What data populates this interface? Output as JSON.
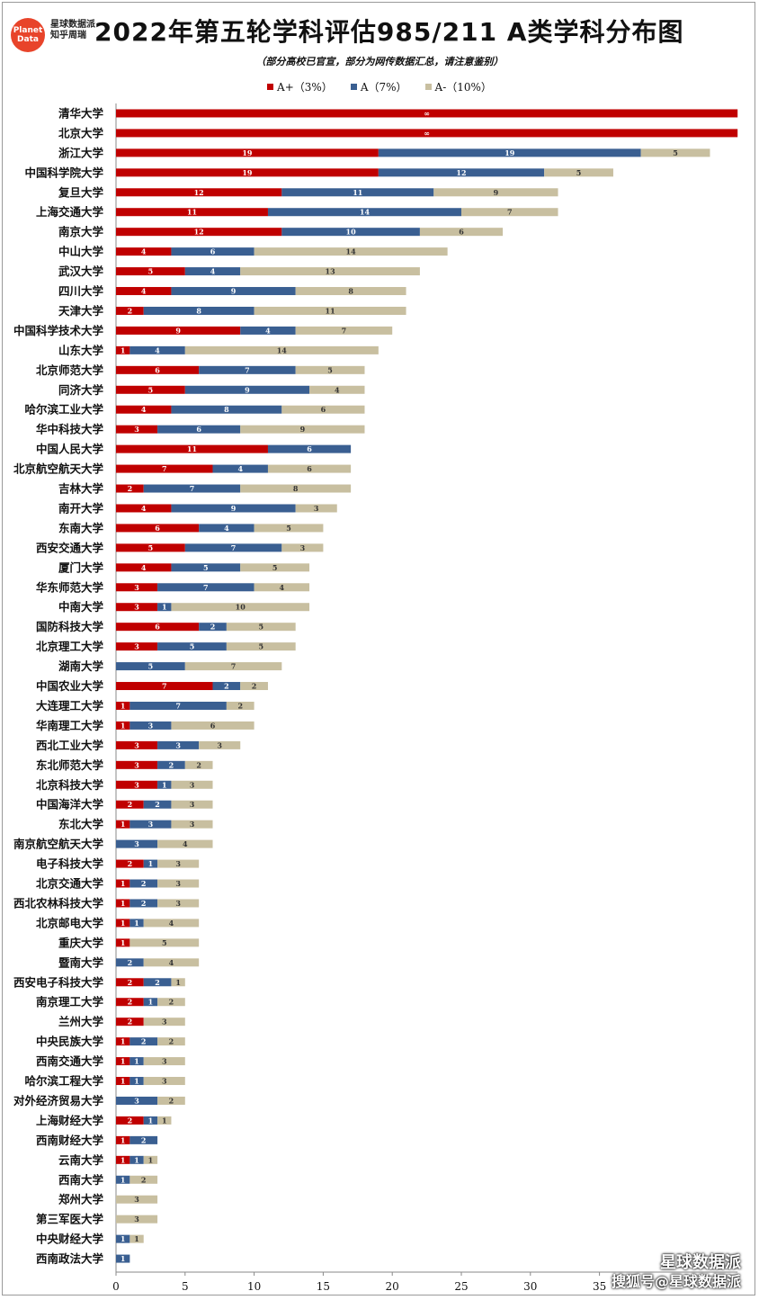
{
  "logo": {
    "line1": "Planet",
    "line2": "Data",
    "sub1": "星球数据派",
    "sub2": "知乎周瑞"
  },
  "title": "2022年第五轮学科评估985/211 A类学科分布图",
  "subtitle": "（部分高校已官宣，部分为网传数据汇总，请注意鉴别）",
  "legend": [
    {
      "label": "A+（3%）",
      "color": "#c00000"
    },
    {
      "label": "A（7%）",
      "color": "#3a5f91"
    },
    {
      "label": "A-（10%）",
      "color": "#c8bfa0"
    }
  ],
  "watermark": {
    "line1": "星球数据派",
    "line2": "搜狐号@星球数据派"
  },
  "chart_data": {
    "type": "bar",
    "orientation": "horizontal",
    "stacked": true,
    "xlim": [
      0,
      45
    ],
    "xticks": [
      0,
      5,
      10,
      15,
      20,
      25,
      30,
      35
    ],
    "categories": [
      "清华大学",
      "北京大学",
      "浙江大学",
      "中国科学院大学",
      "复旦大学",
      "上海交通大学",
      "南京大学",
      "中山大学",
      "武汉大学",
      "四川大学",
      "天津大学",
      "中国科学技术大学",
      "山东大学",
      "北京师范大学",
      "同济大学",
      "哈尔滨工业大学",
      "华中科技大学",
      "中国人民大学",
      "北京航空航天大学",
      "吉林大学",
      "南开大学",
      "东南大学",
      "西安交通大学",
      "厦门大学",
      "华东师范大学",
      "中南大学",
      "国防科技大学",
      "北京理工大学",
      "湖南大学",
      "中国农业大学",
      "大连理工大学",
      "华南理工大学",
      "西北工业大学",
      "东北师范大学",
      "北京科技大学",
      "中国海洋大学",
      "东北大学",
      "南京航空航天大学",
      "电子科技大学",
      "北京交通大学",
      "西北农林科技大学",
      "北京邮电大学",
      "重庆大学",
      "暨南大学",
      "西安电子科技大学",
      "南京理工大学",
      "兰州大学",
      "中央民族大学",
      "西南交通大学",
      "哈尔滨工程大学",
      "对外经济贸易大学",
      "上海财经大学",
      "西南财经大学",
      "云南大学",
      "西南大学",
      "郑州大学",
      "第三军医大学",
      "中央财经大学",
      "西南政法大学"
    ],
    "series": [
      {
        "name": "A+（3%）",
        "color": "#c00000",
        "labels": [
          "∞",
          "∞",
          "19",
          "19",
          "12",
          "11",
          "12",
          "4",
          "5",
          "4",
          "2",
          "9",
          "1",
          "6",
          "5",
          "4",
          "3",
          "11",
          "7",
          "2",
          "4",
          "6",
          "5",
          "4",
          "3",
          "3",
          "6",
          "3",
          "0",
          "7",
          "1",
          "1",
          "3",
          "3",
          "3",
          "2",
          "1",
          "0",
          "2",
          "1",
          "1",
          "1",
          "1",
          "0",
          "2",
          "2",
          "2",
          "1",
          "1",
          "1",
          "0",
          "2",
          "1",
          "1",
          "0",
          "",
          "",
          "0",
          "0"
        ],
        "values": [
          45,
          45,
          19,
          19,
          12,
          11,
          12,
          4,
          5,
          4,
          2,
          9,
          1,
          6,
          5,
          4,
          3,
          11,
          7,
          2,
          4,
          6,
          5,
          4,
          3,
          3,
          6,
          3,
          0,
          7,
          1,
          1,
          3,
          3,
          3,
          2,
          1,
          0,
          2,
          1,
          1,
          1,
          1,
          0,
          2,
          2,
          2,
          1,
          1,
          1,
          0,
          2,
          1,
          1,
          0,
          0,
          0,
          0,
          0
        ]
      },
      {
        "name": "A（7%）",
        "color": "#3a5f91",
        "labels": [
          "",
          "",
          "19",
          "12",
          "11",
          "14",
          "10",
          "6",
          "4",
          "9",
          "8",
          "4",
          "4",
          "7",
          "9",
          "8",
          "6",
          "6",
          "4",
          "7",
          "9",
          "4",
          "7",
          "5",
          "7",
          "1",
          "2",
          "5",
          "5",
          "2",
          "7",
          "3",
          "3",
          "2",
          "1",
          "2",
          "3",
          "3",
          "1",
          "2",
          "2",
          "1",
          "0",
          "2",
          "2",
          "1",
          "0",
          "2",
          "1",
          "1",
          "3",
          "1",
          "2",
          "1",
          "1",
          "",
          "",
          "1",
          "1"
        ],
        "values": [
          0,
          0,
          19,
          12,
          11,
          14,
          10,
          6,
          4,
          9,
          8,
          4,
          4,
          7,
          9,
          8,
          6,
          6,
          4,
          7,
          9,
          4,
          7,
          5,
          7,
          1,
          2,
          5,
          5,
          2,
          7,
          3,
          3,
          2,
          1,
          2,
          3,
          3,
          1,
          2,
          2,
          1,
          0,
          2,
          2,
          1,
          0,
          2,
          1,
          1,
          3,
          1,
          2,
          1,
          1,
          0,
          0,
          1,
          1
        ]
      },
      {
        "name": "A-（10%）",
        "color": "#c8bfa0",
        "labels": [
          "",
          "",
          "5",
          "5",
          "9",
          "7",
          "6",
          "14",
          "13",
          "8",
          "11",
          "7",
          "14",
          "5",
          "4",
          "6",
          "9",
          "",
          "6",
          "8",
          "3",
          "5",
          "3",
          "5",
          "4",
          "10",
          "5",
          "5",
          "7",
          "2",
          "2",
          "6",
          "3",
          "2",
          "3",
          "3",
          "3",
          "4",
          "3",
          "3",
          "3",
          "4",
          "5",
          "4",
          "1",
          "2",
          "3",
          "2",
          "3",
          "3",
          "2",
          "1",
          "",
          "1",
          "2",
          "3",
          "3",
          "1",
          ""
        ],
        "values": [
          0,
          0,
          5,
          5,
          9,
          7,
          6,
          14,
          13,
          8,
          11,
          7,
          14,
          5,
          4,
          6,
          9,
          0,
          6,
          8,
          3,
          5,
          3,
          5,
          4,
          10,
          5,
          5,
          7,
          2,
          2,
          6,
          3,
          2,
          3,
          3,
          3,
          4,
          3,
          3,
          3,
          4,
          5,
          4,
          1,
          2,
          3,
          2,
          3,
          3,
          2,
          1,
          0,
          1,
          2,
          3,
          3,
          1,
          0
        ]
      }
    ]
  }
}
